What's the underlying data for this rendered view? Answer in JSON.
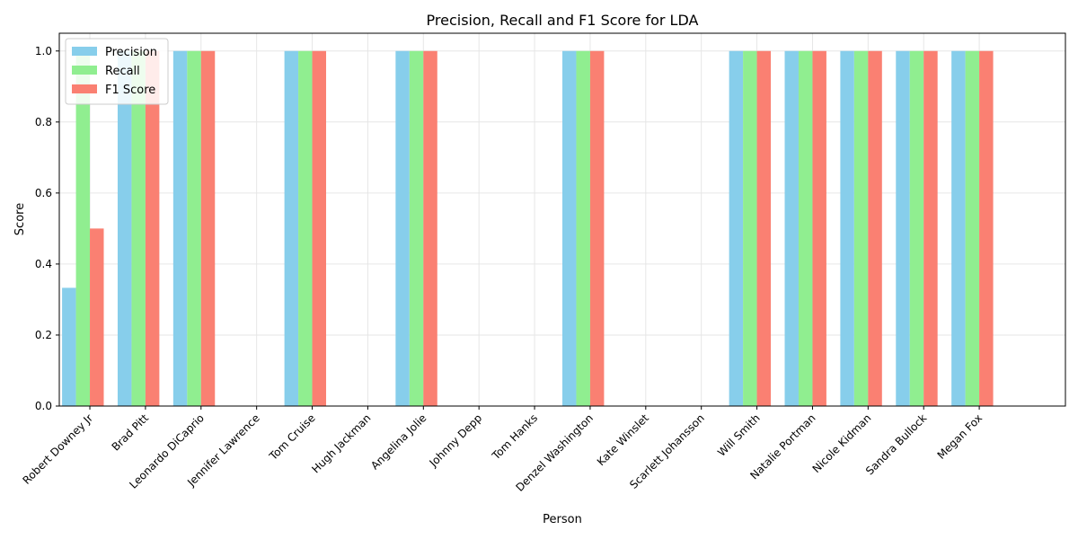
{
  "chart_data": {
    "type": "bar",
    "title": "Precision, Recall and F1 Score for LDA",
    "xlabel": "Person",
    "ylabel": "Score",
    "ylim": [
      0,
      1.05
    ],
    "yticks": [
      0.0,
      0.2,
      0.4,
      0.6,
      0.8,
      1.0
    ],
    "ytick_labels": [
      "0.0",
      "0.2",
      "0.4",
      "0.6",
      "0.8",
      "1.0"
    ],
    "grid": true,
    "legend_position": "top-left",
    "categories": [
      "Robert Downey Jr",
      "Brad Pitt",
      "Leonardo DiCaprio",
      "Jennifer Lawrence",
      "Tom Cruise",
      "Hugh Jackman",
      "Angelina Jolie",
      "Johnny Depp",
      "Tom Hanks",
      "Denzel Washington",
      "Kate Winslet",
      "Scarlett Johansson",
      "Will Smith",
      "Natalie Portman",
      "Nicole Kidman",
      "Sandra Bullock",
      "Megan Fox"
    ],
    "series": [
      {
        "name": "Precision",
        "color": "#87ceeb",
        "values": [
          0.333,
          1.0,
          1.0,
          0.0,
          1.0,
          0.0,
          1.0,
          0.0,
          0.0,
          1.0,
          0.0,
          0.0,
          1.0,
          1.0,
          1.0,
          1.0,
          1.0
        ]
      },
      {
        "name": "Recall",
        "color": "#90ee90",
        "values": [
          1.0,
          1.0,
          1.0,
          0.0,
          1.0,
          0.0,
          1.0,
          0.0,
          0.0,
          1.0,
          0.0,
          0.0,
          1.0,
          1.0,
          1.0,
          1.0,
          1.0
        ]
      },
      {
        "name": "F1 Score",
        "color": "#fa8072",
        "values": [
          0.5,
          1.0,
          1.0,
          0.0,
          1.0,
          0.0,
          1.0,
          0.0,
          0.0,
          1.0,
          0.0,
          0.0,
          1.0,
          1.0,
          1.0,
          1.0,
          1.0
        ]
      }
    ]
  }
}
